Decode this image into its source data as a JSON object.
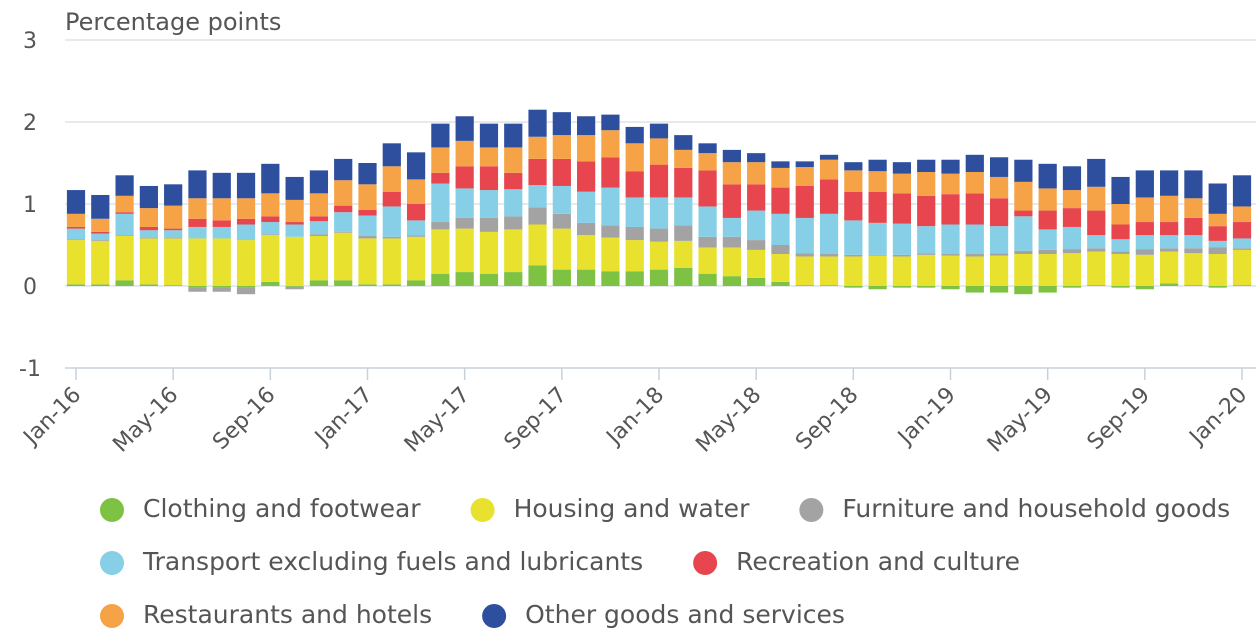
{
  "chart_data": {
    "type": "stacked-bar",
    "y_label": "Percentage points",
    "categories": [
      "Jan-16",
      null,
      null,
      null,
      "May-16",
      null,
      null,
      null,
      "Sep-16",
      null,
      null,
      null,
      "Jan-17",
      null,
      null,
      null,
      "May-17",
      null,
      null,
      null,
      "Sep-17",
      null,
      null,
      null,
      "Jan-18",
      null,
      null,
      null,
      "May-18",
      null,
      null,
      null,
      "Sep-18",
      null,
      null,
      null,
      "Jan-19",
      null,
      null,
      null,
      "May-19",
      null,
      null,
      null,
      "Sep-19",
      null,
      null,
      null,
      "Jan-20"
    ],
    "ylim": [
      -1,
      3
    ],
    "yticks": [
      -1,
      0,
      1,
      2,
      3
    ],
    "grid": true,
    "series": [
      {
        "name": "Clothing and footwear",
        "color": "#7dc242",
        "values": [
          0.02,
          0.02,
          0.07,
          0.02,
          0.01,
          -0.02,
          -0.02,
          -0.02,
          0.05,
          -0.01,
          0.07,
          0.07,
          0.02,
          0.02,
          0.07,
          0.15,
          0.17,
          0.15,
          0.17,
          0.25,
          0.2,
          0.2,
          0.18,
          0.18,
          0.2,
          0.22,
          0.15,
          0.12,
          0.1,
          0.05,
          0.01,
          0.01,
          -0.02,
          -0.04,
          -0.02,
          -0.02,
          -0.04,
          -0.08,
          -0.08,
          -0.1,
          -0.08,
          -0.02,
          0.01,
          -0.02,
          -0.04,
          0.03,
          0.01,
          -0.02,
          0.01
        ]
      },
      {
        "name": "Housing and water",
        "color": "#e8e22e",
        "values": [
          0.54,
          0.53,
          0.54,
          0.56,
          0.57,
          0.58,
          0.58,
          0.56,
          0.57,
          0.6,
          0.54,
          0.58,
          0.56,
          0.56,
          0.53,
          0.54,
          0.53,
          0.51,
          0.52,
          0.5,
          0.5,
          0.42,
          0.41,
          0.38,
          0.34,
          0.33,
          0.32,
          0.35,
          0.34,
          0.34,
          0.35,
          0.35,
          0.36,
          0.37,
          0.36,
          0.38,
          0.37,
          0.36,
          0.37,
          0.39,
          0.39,
          0.4,
          0.41,
          0.39,
          0.38,
          0.39,
          0.39,
          0.39,
          0.43
        ]
      },
      {
        "name": "Furniture and household goods",
        "color": "#a3a3a3",
        "values": [
          0.01,
          0.01,
          0.01,
          0.01,
          0.01,
          -0.05,
          -0.05,
          -0.08,
          0.01,
          -0.03,
          0.02,
          0.01,
          0.03,
          0.02,
          0.02,
          0.09,
          0.13,
          0.17,
          0.16,
          0.21,
          0.18,
          0.15,
          0.15,
          0.16,
          0.16,
          0.19,
          0.13,
          0.13,
          0.12,
          0.11,
          0.04,
          0.03,
          0.02,
          0.01,
          0.02,
          0.02,
          0.02,
          0.03,
          0.03,
          0.04,
          0.05,
          0.05,
          0.04,
          0.03,
          0.07,
          0.04,
          0.06,
          0.08,
          0.02
        ]
      },
      {
        "name": "Transport excluding fuels and lubricants",
        "color": "#86cfe6",
        "values": [
          0.13,
          0.08,
          0.26,
          0.09,
          0.09,
          0.14,
          0.14,
          0.19,
          0.15,
          0.15,
          0.16,
          0.24,
          0.25,
          0.37,
          0.18,
          0.47,
          0.36,
          0.34,
          0.33,
          0.27,
          0.34,
          0.38,
          0.46,
          0.36,
          0.38,
          0.34,
          0.37,
          0.23,
          0.36,
          0.38,
          0.43,
          0.49,
          0.42,
          0.39,
          0.38,
          0.33,
          0.36,
          0.36,
          0.33,
          0.42,
          0.25,
          0.27,
          0.16,
          0.15,
          0.17,
          0.16,
          0.16,
          0.08,
          0.12
        ]
      },
      {
        "name": "Recreation and culture",
        "color": "#e8464f",
        "values": [
          0.02,
          0.02,
          0.02,
          0.04,
          0.02,
          0.1,
          0.08,
          0.07,
          0.07,
          0.03,
          0.06,
          0.08,
          0.07,
          0.18,
          0.2,
          0.13,
          0.27,
          0.29,
          0.2,
          0.32,
          0.33,
          0.37,
          0.37,
          0.32,
          0.4,
          0.36,
          0.44,
          0.41,
          0.32,
          0.32,
          0.39,
          0.42,
          0.35,
          0.38,
          0.37,
          0.37,
          0.37,
          0.38,
          0.34,
          0.07,
          0.23,
          0.23,
          0.3,
          0.18,
          0.16,
          0.16,
          0.21,
          0.18,
          0.2
        ]
      },
      {
        "name": "Restaurants and hotels",
        "color": "#f5a346",
        "values": [
          0.16,
          0.16,
          0.2,
          0.23,
          0.28,
          0.25,
          0.27,
          0.25,
          0.28,
          0.27,
          0.28,
          0.31,
          0.31,
          0.31,
          0.3,
          0.31,
          0.31,
          0.23,
          0.31,
          0.27,
          0.29,
          0.32,
          0.33,
          0.34,
          0.32,
          0.22,
          0.21,
          0.27,
          0.27,
          0.24,
          0.23,
          0.24,
          0.26,
          0.25,
          0.24,
          0.29,
          0.25,
          0.26,
          0.26,
          0.35,
          0.27,
          0.22,
          0.29,
          0.25,
          0.3,
          0.32,
          0.24,
          0.15,
          0.19
        ]
      },
      {
        "name": "Other goods and services",
        "color": "#2e4f9e",
        "values": [
          0.29,
          0.29,
          0.25,
          0.27,
          0.26,
          0.34,
          0.31,
          0.31,
          0.36,
          0.28,
          0.28,
          0.26,
          0.26,
          0.28,
          0.33,
          0.29,
          0.3,
          0.29,
          0.29,
          0.33,
          0.28,
          0.23,
          0.19,
          0.2,
          0.18,
          0.18,
          0.12,
          0.15,
          0.11,
          0.08,
          0.07,
          0.06,
          0.1,
          0.14,
          0.14,
          0.15,
          0.17,
          0.21,
          0.24,
          0.27,
          0.3,
          0.29,
          0.34,
          0.33,
          0.33,
          0.31,
          0.34,
          0.37,
          0.38
        ]
      }
    ]
  }
}
